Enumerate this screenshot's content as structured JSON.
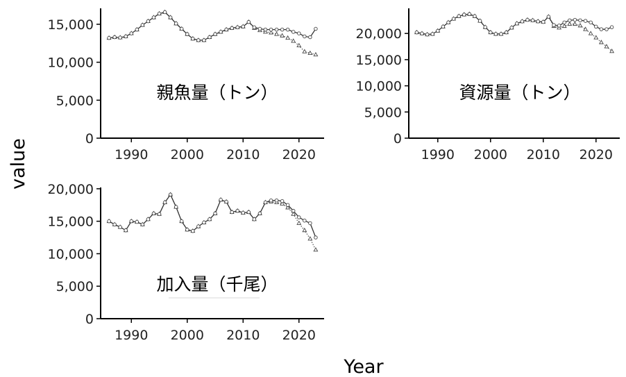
{
  "xlabel": "Year",
  "ylabel": "value",
  "chart_data": [
    {
      "type": "line",
      "title": "親魚量（トン）",
      "xlim": [
        1984.5,
        2024.5
      ],
      "ylim": [
        0,
        17100
      ],
      "xticks": [
        1990,
        2000,
        2010,
        2020
      ],
      "yticks": [
        0,
        5000,
        10000,
        15000
      ],
      "ytick_labels": [
        "0",
        "5,000",
        "10,000",
        "15,000"
      ],
      "x": [
        1986,
        1987,
        1988,
        1989,
        1990,
        1991,
        1992,
        1993,
        1994,
        1995,
        1996,
        1997,
        1998,
        1999,
        2000,
        2001,
        2002,
        2003,
        2004,
        2005,
        2006,
        2007,
        2008,
        2009,
        2010,
        2011,
        2012,
        2013,
        2014,
        2015,
        2016,
        2017,
        2018,
        2019,
        2020,
        2021,
        2022,
        2023
      ],
      "series": [
        {
          "marker": "circle",
          "line": "solid",
          "values": [
            13200,
            13300,
            13250,
            13400,
            13800,
            14300,
            14900,
            15400,
            15900,
            16400,
            16600,
            15900,
            15100,
            14400,
            13700,
            13100,
            12900,
            12900,
            13300,
            13700,
            14000,
            14300,
            14500,
            14600,
            14700,
            15300,
            14600,
            14400,
            14300,
            14300,
            14300,
            14300,
            14300,
            14000,
            13800,
            13400,
            13300,
            14400
          ]
        },
        {
          "marker": "triangle",
          "line": "dotted",
          "values": [
            13200,
            13300,
            13250,
            13400,
            13800,
            14300,
            14900,
            15400,
            15900,
            16400,
            16600,
            15900,
            15100,
            14400,
            13700,
            13100,
            12900,
            12900,
            13300,
            13700,
            14000,
            14300,
            14500,
            14600,
            14700,
            15300,
            14500,
            14200,
            14000,
            13900,
            13700,
            13500,
            13200,
            12800,
            12200,
            11400,
            11200,
            11000
          ]
        }
      ]
    },
    {
      "type": "line",
      "title": "資源量（トン）",
      "xlim": [
        1984.5,
        2024.5
      ],
      "ylim": [
        0,
        24800
      ],
      "xticks": [
        1990,
        2000,
        2010,
        2020
      ],
      "yticks": [
        0,
        5000,
        10000,
        15000,
        20000
      ],
      "ytick_labels": [
        "0",
        "5,000",
        "10,000",
        "15,000",
        "20,000"
      ],
      "x": [
        1986,
        1987,
        1988,
        1989,
        1990,
        1991,
        1992,
        1993,
        1994,
        1995,
        1996,
        1997,
        1998,
        1999,
        2000,
        2001,
        2002,
        2003,
        2004,
        2005,
        2006,
        2007,
        2008,
        2009,
        2010,
        2011,
        2012,
        2013,
        2014,
        2015,
        2016,
        2017,
        2018,
        2019,
        2020,
        2021,
        2022,
        2023
      ],
      "series": [
        {
          "marker": "circle",
          "line": "solid",
          "values": [
            20200,
            20000,
            19800,
            19900,
            20500,
            21300,
            22100,
            22800,
            23300,
            23600,
            23700,
            23300,
            22400,
            21200,
            20200,
            19900,
            19900,
            20200,
            21100,
            21900,
            22300,
            22600,
            22500,
            22300,
            22200,
            23200,
            21600,
            21500,
            22100,
            22500,
            22600,
            22500,
            22400,
            22100,
            21300,
            20800,
            20800,
            21200
          ]
        },
        {
          "marker": "triangle",
          "line": "dotted",
          "values": [
            20200,
            20000,
            19800,
            19900,
            20500,
            21300,
            22100,
            22800,
            23300,
            23600,
            23700,
            23300,
            22400,
            21200,
            20200,
            19900,
            19900,
            20200,
            21100,
            21900,
            22300,
            22600,
            22500,
            22300,
            22200,
            23200,
            21400,
            21100,
            21400,
            21800,
            21800,
            21500,
            20800,
            20000,
            19200,
            18300,
            17500,
            16600
          ]
        }
      ]
    },
    {
      "type": "line",
      "title": "加入量（千尾）",
      "xlim": [
        1984.5,
        2024.5
      ],
      "ylim": [
        0,
        20200
      ],
      "xticks": [
        1990,
        2000,
        2010,
        2020
      ],
      "yticks": [
        0,
        5000,
        10000,
        15000,
        20000
      ],
      "ytick_labels": [
        "0",
        "5,000",
        "10,000",
        "15,000",
        "20,000"
      ],
      "x": [
        1986,
        1987,
        1988,
        1989,
        1990,
        1991,
        1992,
        1993,
        1994,
        1995,
        1996,
        1997,
        1998,
        1999,
        2000,
        2001,
        2002,
        2003,
        2004,
        2005,
        2006,
        2007,
        2008,
        2009,
        2010,
        2011,
        2012,
        2013,
        2014,
        2015,
        2016,
        2017,
        2018,
        2019,
        2020,
        2021,
        2022,
        2023
      ],
      "series": [
        {
          "marker": "circle",
          "line": "solid",
          "values": [
            15000,
            14500,
            14100,
            13600,
            15000,
            14900,
            14500,
            15300,
            16200,
            16100,
            17900,
            19100,
            17200,
            15000,
            13700,
            13500,
            14200,
            14800,
            15300,
            16200,
            18300,
            18000,
            16400,
            16600,
            16300,
            16400,
            15300,
            16200,
            17900,
            18200,
            18200,
            18100,
            17500,
            16600,
            15600,
            15100,
            14700,
            12500
          ]
        },
        {
          "marker": "triangle",
          "line": "dotted",
          "values": [
            15000,
            14500,
            14100,
            13600,
            15000,
            14900,
            14500,
            15300,
            16200,
            16100,
            17900,
            19100,
            17200,
            15000,
            13700,
            13500,
            14200,
            14800,
            15300,
            16200,
            18300,
            18000,
            16400,
            16600,
            16300,
            16400,
            15300,
            16200,
            17900,
            18000,
            17900,
            17700,
            17100,
            16100,
            14700,
            13600,
            12300,
            10600
          ]
        }
      ]
    }
  ]
}
